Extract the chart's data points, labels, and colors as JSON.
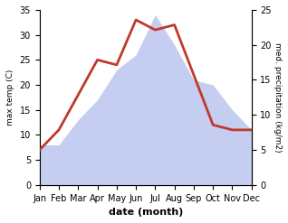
{
  "months": [
    "Jan",
    "Feb",
    "Mar",
    "Apr",
    "May",
    "Jun",
    "Jul",
    "Aug",
    "Sep",
    "Oct",
    "Nov",
    "Dec"
  ],
  "temperature": [
    7,
    11,
    18,
    25,
    24,
    33,
    31,
    32,
    22,
    12,
    11,
    11
  ],
  "precipitation": [
    8,
    8,
    13,
    17,
    23,
    26,
    34,
    28,
    21,
    20,
    15,
    11
  ],
  "temp_color": "#c0392b",
  "precip_fill_color": "#c5cdf0",
  "temp_ylim": [
    0,
    35
  ],
  "precip_ylim": [
    0,
    35
  ],
  "left_yticks": [
    0,
    5,
    10,
    15,
    20,
    25,
    30,
    35
  ],
  "right_yticks": [
    0,
    5,
    10,
    15,
    20,
    25
  ],
  "right_ylim": [
    0,
    25
  ],
  "xlabel": "date (month)",
  "ylabel_left": "max temp (C)",
  "ylabel_right": "med. precipitation (kg/m2)",
  "temp_linewidth": 2.0,
  "bg_color": "#ffffff"
}
